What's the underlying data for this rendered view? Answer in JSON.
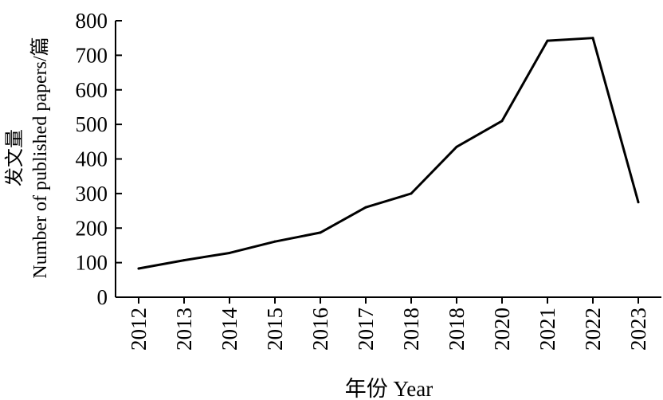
{
  "chart_data": {
    "type": "line",
    "categories": [
      "2012",
      "2013",
      "2014",
      "2015",
      "2016",
      "2017",
      "2018",
      "2018",
      "2020",
      "2021",
      "2022",
      "2023"
    ],
    "values": [
      83,
      107,
      128,
      161,
      187,
      260,
      300,
      435,
      510,
      742,
      750,
      275
    ],
    "xlabel": "年份 Year",
    "ylabel_cn": "发文量",
    "ylabel_en": "Number of published papers/篇",
    "ylim": [
      0,
      800
    ],
    "yticks": [
      0,
      100,
      200,
      300,
      400,
      500,
      600,
      700,
      800
    ],
    "grid": false,
    "line_color": "#000000"
  }
}
